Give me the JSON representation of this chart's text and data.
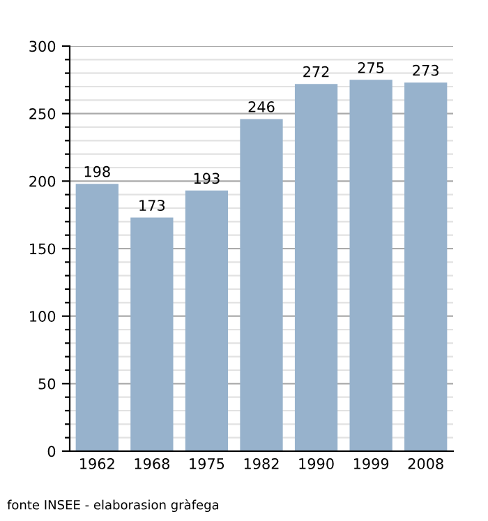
{
  "chart_data": {
    "type": "bar",
    "categories": [
      "1962",
      "1968",
      "1975",
      "1982",
      "1990",
      "1999",
      "2008"
    ],
    "values": [
      198,
      173,
      193,
      246,
      272,
      275,
      273
    ],
    "color": "#97b2cc",
    "data_labels": true,
    "grid": "y",
    "ylim": [
      0,
      300
    ],
    "yticks": [
      0,
      {
        "value": 10,
        "label": null
      },
      {
        "value": 20,
        "label": null
      },
      {
        "value": 30,
        "label": null
      },
      {
        "value": 40,
        "label": null
      },
      50,
      {
        "value": 60,
        "label": null
      },
      {
        "value": 70,
        "label": null
      },
      {
        "value": 80,
        "label": null
      },
      {
        "value": 90,
        "label": null
      },
      100,
      {
        "value": 110,
        "label": null
      },
      {
        "value": 120,
        "label": null
      },
      {
        "value": 130,
        "label": null
      },
      {
        "value": 140,
        "label": null
      },
      150,
      {
        "value": 160,
        "label": null
      },
      {
        "value": 170,
        "label": null
      },
      {
        "value": 180,
        "label": null
      },
      {
        "value": 190,
        "label": null
      },
      200,
      {
        "value": 210,
        "label": null
      },
      {
        "value": 220,
        "label": null
      },
      {
        "value": 230,
        "label": null
      },
      {
        "value": 240,
        "label": null
      },
      250,
      {
        "value": 260,
        "label": null
      },
      {
        "value": 270,
        "label": null
      },
      {
        "value": 280,
        "label": null
      },
      {
        "value": 290,
        "label": null
      },
      300
    ],
    "annotations": [
      "fonte INSEE - elaborasion gràfega"
    ]
  }
}
